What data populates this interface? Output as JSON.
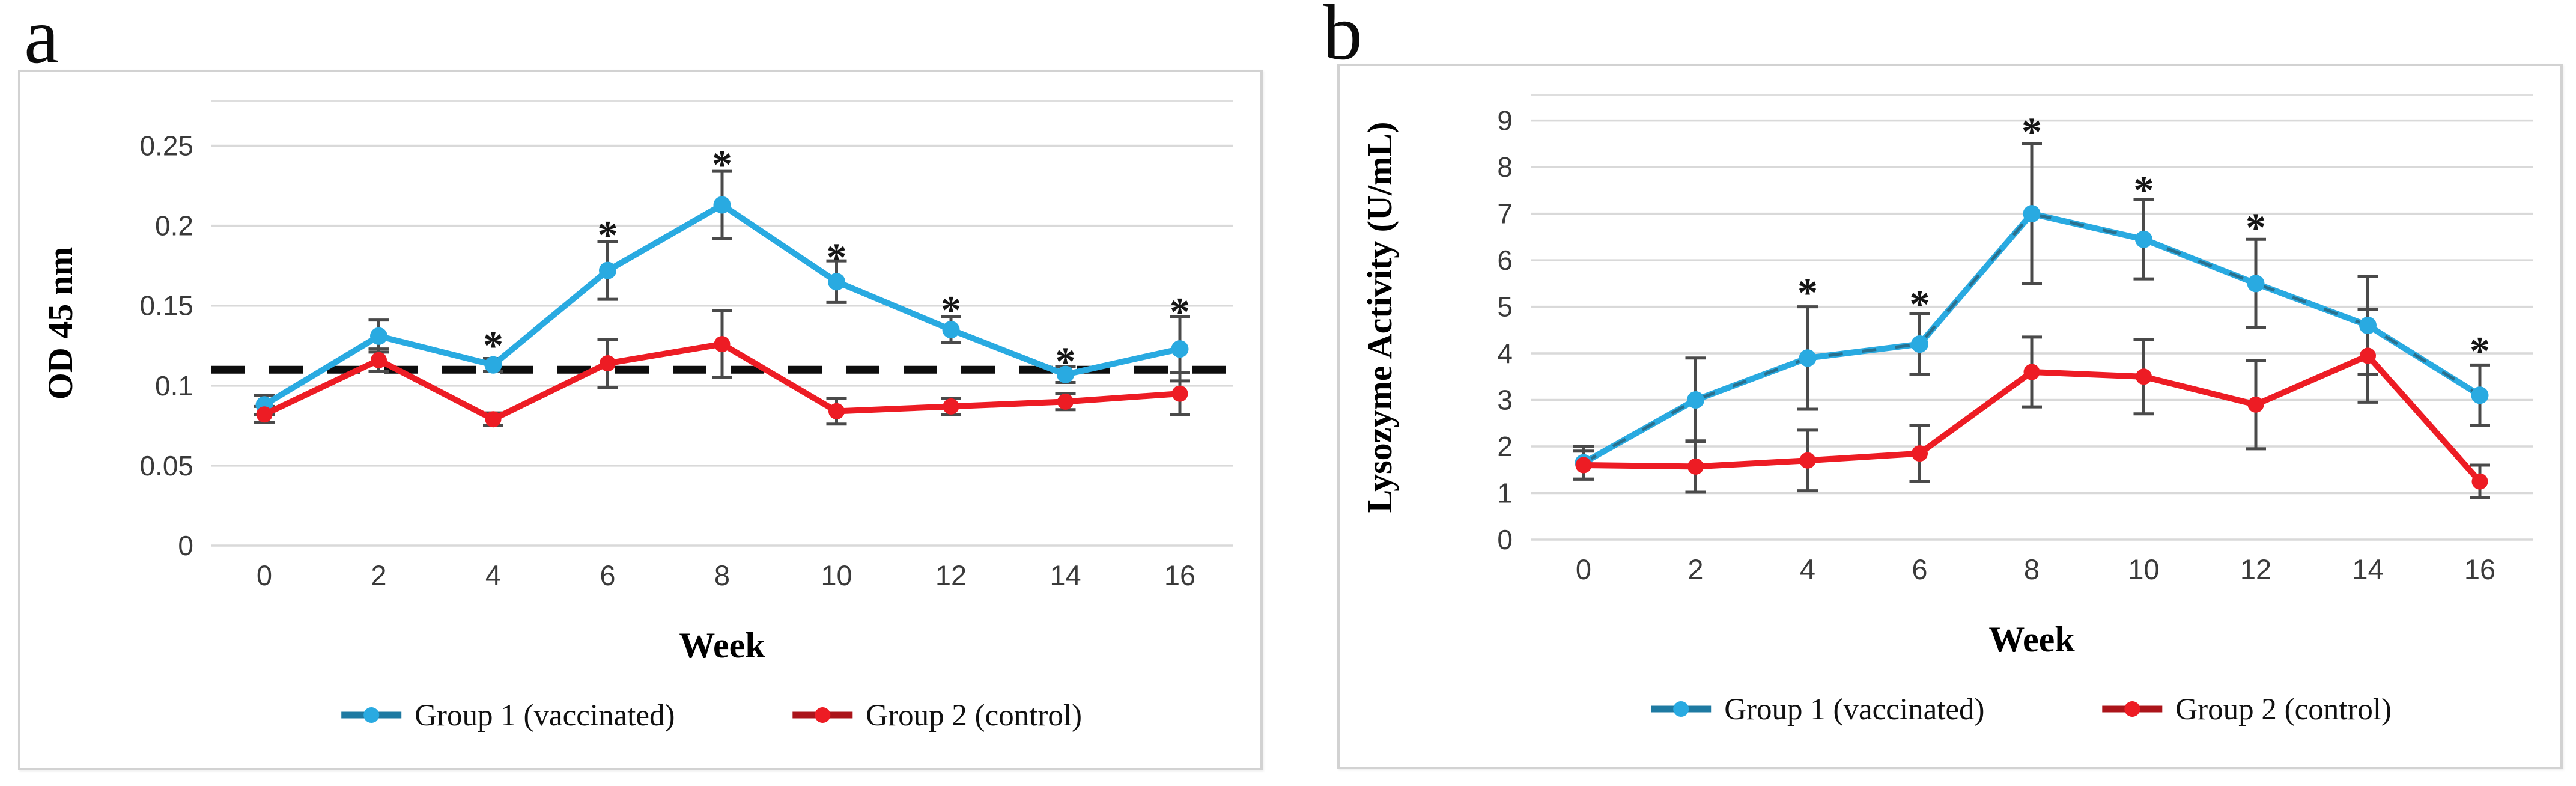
{
  "figure": {
    "asterisk_symbol": "*",
    "background_color": "#ffffff"
  },
  "colors": {
    "group1_blue": "#29aae1",
    "group2_red": "#ed1c24",
    "gridline": "#d9d9d9",
    "plot_top_line": "#dedede",
    "error_bar": "#4a4a4a",
    "threshold_dash": "#0d0d0d",
    "tick_text": "#3a3a3a",
    "axis_title_text": "#000000",
    "legend_text": "#111111",
    "panel_border": "#d2d2d2"
  },
  "chart_data": [
    {
      "id": "a",
      "panel_label": "a",
      "type": "line",
      "xlabel": "Week",
      "ylabel": "OD 45 nm",
      "x_categories": [
        0,
        2,
        4,
        6,
        8,
        10,
        12,
        14,
        16
      ],
      "x_tick_labels": [
        "0",
        "2",
        "4",
        "6",
        "8",
        "10",
        "12",
        "14",
        "16"
      ],
      "y_tick_values": [
        0,
        0.05,
        0.1,
        0.15,
        0.2,
        0.25
      ],
      "y_tick_labels": [
        "0",
        "0.05",
        "0.1",
        "0.15",
        "0.2",
        "0.25"
      ],
      "ylim": [
        0,
        0.278
      ],
      "grid": true,
      "legend_position": "bottom",
      "threshold_line": {
        "style": "dashed",
        "value": 0.11
      },
      "series": [
        {
          "name": "Group 1 (vaccinated)",
          "color": "#29aae1",
          "marker": "circle",
          "overlay_dash": false,
          "values": [
            0.088,
            0.131,
            0.113,
            0.172,
            0.213,
            0.165,
            0.135,
            0.107,
            0.123
          ],
          "errors": [
            0.006,
            0.01,
            0.004,
            0.018,
            0.021,
            0.013,
            0.008,
            0.005,
            0.02
          ]
        },
        {
          "name": "Group 2 (control)",
          "color": "#ed1c24",
          "marker": "circle",
          "overlay_dash": false,
          "values": [
            0.082,
            0.116,
            0.079,
            0.114,
            0.126,
            0.084,
            0.087,
            0.09,
            0.095
          ],
          "errors": [
            0.005,
            0.007,
            0.004,
            0.015,
            0.021,
            0.008,
            0.005,
            0.005,
            0.013
          ]
        }
      ],
      "significance_asterisks": [
        {
          "week": 4,
          "y": 0.128
        },
        {
          "week": 6,
          "y": 0.197
        },
        {
          "week": 8,
          "y": 0.241
        },
        {
          "week": 10,
          "y": 0.183
        },
        {
          "week": 12,
          "y": 0.15
        },
        {
          "week": 14,
          "y": 0.118
        },
        {
          "week": 16,
          "y": 0.149
        }
      ]
    },
    {
      "id": "b",
      "panel_label": "b",
      "type": "line",
      "xlabel": "Week",
      "ylabel": "Lysozyme Activity (U/mL)",
      "x_categories": [
        0,
        2,
        4,
        6,
        8,
        10,
        12,
        14,
        16
      ],
      "x_tick_labels": [
        "0",
        "2",
        "4",
        "6",
        "8",
        "10",
        "12",
        "14",
        "16"
      ],
      "y_tick_values": [
        0,
        1,
        2,
        3,
        4,
        5,
        6,
        7,
        8,
        9
      ],
      "y_tick_labels": [
        "0",
        "1",
        "2",
        "3",
        "4",
        "5",
        "6",
        "7",
        "8",
        "9"
      ],
      "ylim": [
        0,
        9.55
      ],
      "grid": true,
      "legend_position": "bottom",
      "threshold_line": null,
      "series": [
        {
          "name": "Group 1 (vaccinated)",
          "color": "#29aae1",
          "marker": "circle",
          "overlay_dash": true,
          "values": [
            1.65,
            3.0,
            3.9,
            4.2,
            7.0,
            6.45,
            5.5,
            4.6,
            3.1
          ],
          "errors": [
            0.35,
            0.9,
            1.1,
            0.65,
            1.5,
            0.85,
            0.95,
            1.05,
            0.65
          ]
        },
        {
          "name": "Group 2 (control)",
          "color": "#ed1c24",
          "marker": "circle",
          "overlay_dash": false,
          "values": [
            1.6,
            1.57,
            1.7,
            1.85,
            3.6,
            3.5,
            2.9,
            3.95,
            1.25
          ],
          "errors": [
            0.3,
            0.55,
            0.65,
            0.6,
            0.75,
            0.8,
            0.95,
            1.0,
            0.35
          ]
        }
      ],
      "significance_asterisks": [
        {
          "week": 4,
          "y": 5.4
        },
        {
          "week": 6,
          "y": 5.15
        },
        {
          "week": 8,
          "y": 8.85
        },
        {
          "week": 10,
          "y": 7.6
        },
        {
          "week": 12,
          "y": 6.8
        },
        {
          "week": 16,
          "y": 4.15
        }
      ]
    }
  ]
}
